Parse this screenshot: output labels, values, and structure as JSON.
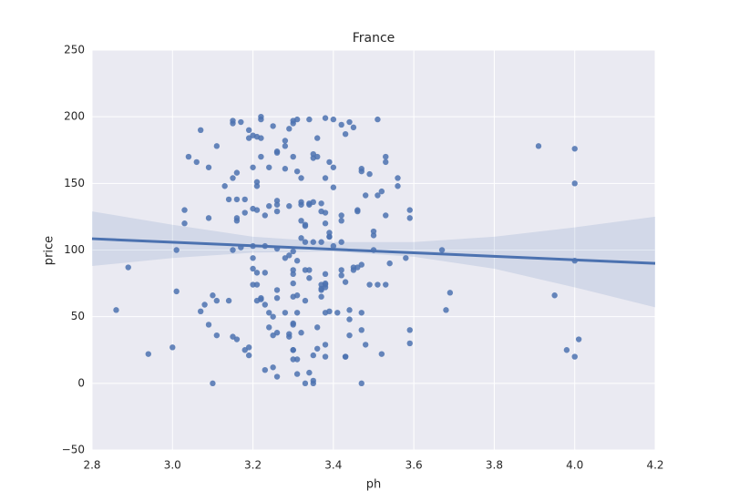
{
  "chart_data": {
    "type": "scatter",
    "title": "France",
    "xlabel": "ph",
    "ylabel": "price",
    "color": "#4c72b0",
    "background": "#eaeaf2",
    "grid": true,
    "xlim": [
      2.8,
      4.2
    ],
    "ylim": [
      -50,
      250
    ],
    "xticks": [
      2.8,
      {
        "value": 3.0,
        "label": "3.0"
      },
      3.2,
      3.4,
      3.6,
      3.8,
      {
        "value": 4.0,
        "label": "4.0"
      },
      4.2
    ],
    "yticks": [
      {
        "value": -50,
        "label": "−50"
      },
      0,
      50,
      100,
      150,
      200,
      250
    ],
    "x": [
      2.86,
      2.89,
      2.94,
      3.0,
      3.01,
      3.01,
      3.03,
      3.03,
      3.04,
      3.06,
      3.07,
      3.07,
      3.08,
      3.09,
      3.09,
      3.09,
      3.1,
      3.1,
      3.11,
      3.11,
      3.11,
      3.13,
      3.14,
      3.14,
      3.15,
      3.15,
      3.15,
      3.15,
      3.15,
      3.16,
      3.16,
      3.16,
      3.16,
      3.16,
      3.17,
      3.17,
      3.18,
      3.18,
      3.18,
      3.19,
      3.19,
      3.19,
      3.19,
      3.2,
      3.2,
      3.2,
      3.2,
      3.2,
      3.2,
      3.2,
      3.21,
      3.21,
      3.21,
      3.21,
      3.21,
      3.21,
      3.21,
      3.22,
      3.22,
      3.22,
      3.22,
      3.22,
      3.22,
      3.23,
      3.23,
      3.23,
      3.23,
      3.23,
      3.24,
      3.24,
      3.24,
      3.24,
      3.25,
      3.25,
      3.25,
      3.25,
      3.26,
      3.26,
      3.26,
      3.26,
      3.26,
      3.26,
      3.26,
      3.26,
      3.26,
      3.26,
      3.28,
      3.28,
      3.28,
      3.28,
      3.28,
      3.29,
      3.29,
      3.29,
      3.29,
      3.29,
      3.3,
      3.3,
      3.3,
      3.3,
      3.3,
      3.3,
      3.3,
      3.3,
      3.3,
      3.3,
      3.3,
      3.3,
      3.3,
      3.31,
      3.31,
      3.31,
      3.31,
      3.31,
      3.31,
      3.31,
      3.32,
      3.32,
      3.32,
      3.32,
      3.32,
      3.32,
      3.33,
      3.33,
      3.33,
      3.33,
      3.33,
      3.33,
      3.34,
      3.34,
      3.34,
      3.34,
      3.34,
      3.34,
      3.35,
      3.35,
      3.35,
      3.35,
      3.35,
      3.35,
      3.35,
      3.36,
      3.36,
      3.36,
      3.36,
      3.37,
      3.37,
      3.37,
      3.37,
      3.37,
      3.37,
      3.37,
      3.38,
      3.38,
      3.38,
      3.38,
      3.38,
      3.38,
      3.38,
      3.38,
      3.38,
      3.38,
      3.38,
      3.39,
      3.39,
      3.39,
      3.39,
      3.39,
      3.4,
      3.4,
      3.4,
      3.4,
      3.41,
      3.42,
      3.42,
      3.42,
      3.42,
      3.42,
      3.42,
      3.43,
      3.43,
      3.43,
      3.43,
      3.44,
      3.44,
      3.44,
      3.44,
      3.45,
      3.45,
      3.45,
      3.46,
      3.46,
      3.46,
      3.47,
      3.47,
      3.47,
      3.47,
      3.47,
      3.47,
      3.48,
      3.48,
      3.49,
      3.49,
      3.5,
      3.5,
      3.5,
      3.51,
      3.51,
      3.51,
      3.52,
      3.52,
      3.53,
      3.53,
      3.53,
      3.53,
      3.54,
      3.56,
      3.56,
      3.58,
      3.59,
      3.59,
      3.59,
      3.59,
      3.67,
      3.68,
      3.69,
      3.91,
      3.95,
      3.98,
      4.0,
      4.0,
      4.0,
      4.0,
      4.01
    ],
    "values": [
      55,
      87,
      22,
      27,
      100,
      69,
      130,
      120,
      170,
      166,
      190,
      54,
      59,
      162,
      44,
      124,
      66,
      0,
      178,
      62,
      36,
      148,
      62,
      138,
      195,
      197,
      154,
      100,
      35,
      158,
      33,
      138,
      124,
      122,
      196,
      102,
      138,
      128,
      25,
      190,
      27,
      21,
      184,
      162,
      186,
      131,
      86,
      103,
      94,
      74,
      130,
      83,
      62,
      74,
      185,
      151,
      148,
      200,
      198,
      170,
      63,
      64,
      184,
      10,
      83,
      126,
      103,
      59,
      162,
      133,
      42,
      53,
      36,
      12,
      50,
      193,
      174,
      173,
      129,
      137,
      134,
      64,
      38,
      5,
      70,
      101,
      178,
      161,
      94,
      182,
      53,
      133,
      35,
      37,
      191,
      96,
      25,
      45,
      25,
      65,
      195,
      170,
      82,
      99,
      85,
      197,
      44,
      75,
      18,
      159,
      198,
      7,
      92,
      53,
      66,
      18,
      136,
      134,
      122,
      109,
      38,
      154,
      62,
      106,
      85,
      0,
      119,
      118,
      134,
      8,
      85,
      79,
      198,
      135,
      21,
      172,
      136,
      106,
      2,
      0,
      169,
      26,
      170,
      42,
      184,
      70,
      74,
      71,
      106,
      135,
      129,
      65,
      154,
      199,
      75,
      74,
      128,
      120,
      72,
      53,
      29,
      20,
      82,
      166,
      110,
      113,
      110,
      54,
      147,
      198,
      103,
      162,
      53,
      126,
      122,
      85,
      106,
      81,
      194,
      20,
      20,
      76,
      187,
      55,
      48,
      196,
      36,
      87,
      85,
      192,
      130,
      129,
      87,
      0,
      159,
      40,
      89,
      53,
      161,
      141,
      29,
      157,
      74,
      114,
      111,
      100,
      198,
      141,
      74,
      22,
      144,
      170,
      166,
      126,
      74,
      90,
      154,
      148,
      94,
      130,
      124,
      40,
      30,
      100,
      55,
      68,
      178,
      66,
      25,
      176,
      150,
      92,
      20,
      33
    ],
    "fit": {
      "x": [
        2.8,
        4.2
      ],
      "values": [
        108.5,
        90
      ]
    },
    "ci": {
      "x": [
        2.8,
        3.0,
        3.2,
        3.4,
        3.6,
        3.8,
        4.0,
        4.2
      ],
      "lower": [
        88,
        94,
        98,
        99,
        95,
        86,
        72,
        57
      ],
      "upper": [
        129,
        119,
        110,
        106,
        106,
        110,
        117,
        125
      ]
    }
  }
}
